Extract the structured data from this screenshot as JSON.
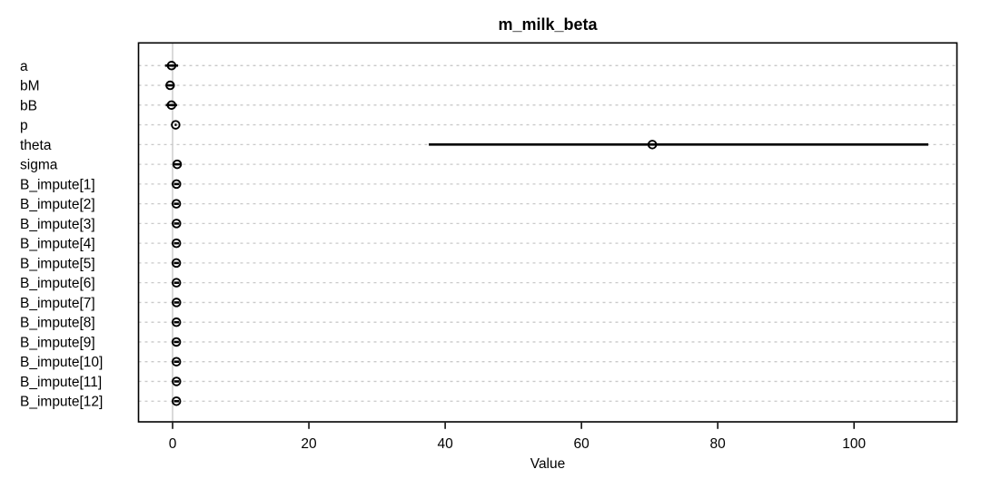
{
  "title": "m_milk_beta",
  "xlabel": "Value",
  "colors": {
    "background": "#ffffff",
    "ink": "#000000",
    "gridline": "#c9c9c9",
    "zero_line": "#dadada",
    "box_border": "#000000"
  },
  "chart_data": {
    "type": "scatter",
    "subtype": "coefficient-interval-plot",
    "title": "m_milk_beta",
    "xlabel": "Value",
    "ylabel": "",
    "xlim": [
      -5.0,
      115.1
    ],
    "xticks": [
      0,
      20,
      40,
      60,
      80,
      100
    ],
    "grid": "horizontal dashed line per parameter row",
    "zero_reference_line": 0,
    "legend": "none",
    "marker": "open-circle with horizontal interval segment",
    "params": [
      {
        "label": "a",
        "mean": -0.15,
        "lo": -1.1,
        "hi": 0.8
      },
      {
        "label": "bM",
        "mean": -0.36,
        "lo": -1.0,
        "hi": 0.3
      },
      {
        "label": "bB",
        "mean": -0.16,
        "lo": -1.0,
        "hi": 0.65
      },
      {
        "label": "p",
        "mean": 0.45,
        "lo": 0.3,
        "hi": 0.6
      },
      {
        "label": "theta",
        "mean": 70.4,
        "lo": 37.6,
        "hi": 110.9
      },
      {
        "label": "sigma",
        "mean": 0.67,
        "lo": 0.05,
        "hi": 1.3
      },
      {
        "label": "B_impute[1]",
        "mean": 0.57,
        "lo": 0.2,
        "hi": 0.95
      },
      {
        "label": "B_impute[2]",
        "mean": 0.55,
        "lo": 0.18,
        "hi": 0.92
      },
      {
        "label": "B_impute[3]",
        "mean": 0.57,
        "lo": 0.2,
        "hi": 0.95
      },
      {
        "label": "B_impute[4]",
        "mean": 0.56,
        "lo": 0.19,
        "hi": 0.93
      },
      {
        "label": "B_impute[5]",
        "mean": 0.55,
        "lo": 0.18,
        "hi": 0.92
      },
      {
        "label": "B_impute[6]",
        "mean": 0.56,
        "lo": 0.2,
        "hi": 0.94
      },
      {
        "label": "B_impute[7]",
        "mean": 0.57,
        "lo": 0.2,
        "hi": 0.95
      },
      {
        "label": "B_impute[8]",
        "mean": 0.56,
        "lo": 0.19,
        "hi": 0.93
      },
      {
        "label": "B_impute[9]",
        "mean": 0.55,
        "lo": 0.18,
        "hi": 0.92
      },
      {
        "label": "B_impute[10]",
        "mean": 0.56,
        "lo": 0.19,
        "hi": 0.94
      },
      {
        "label": "B_impute[11]",
        "mean": 0.57,
        "lo": 0.2,
        "hi": 0.95
      },
      {
        "label": "B_impute[12]",
        "mean": 0.56,
        "lo": 0.19,
        "hi": 0.93
      }
    ]
  }
}
